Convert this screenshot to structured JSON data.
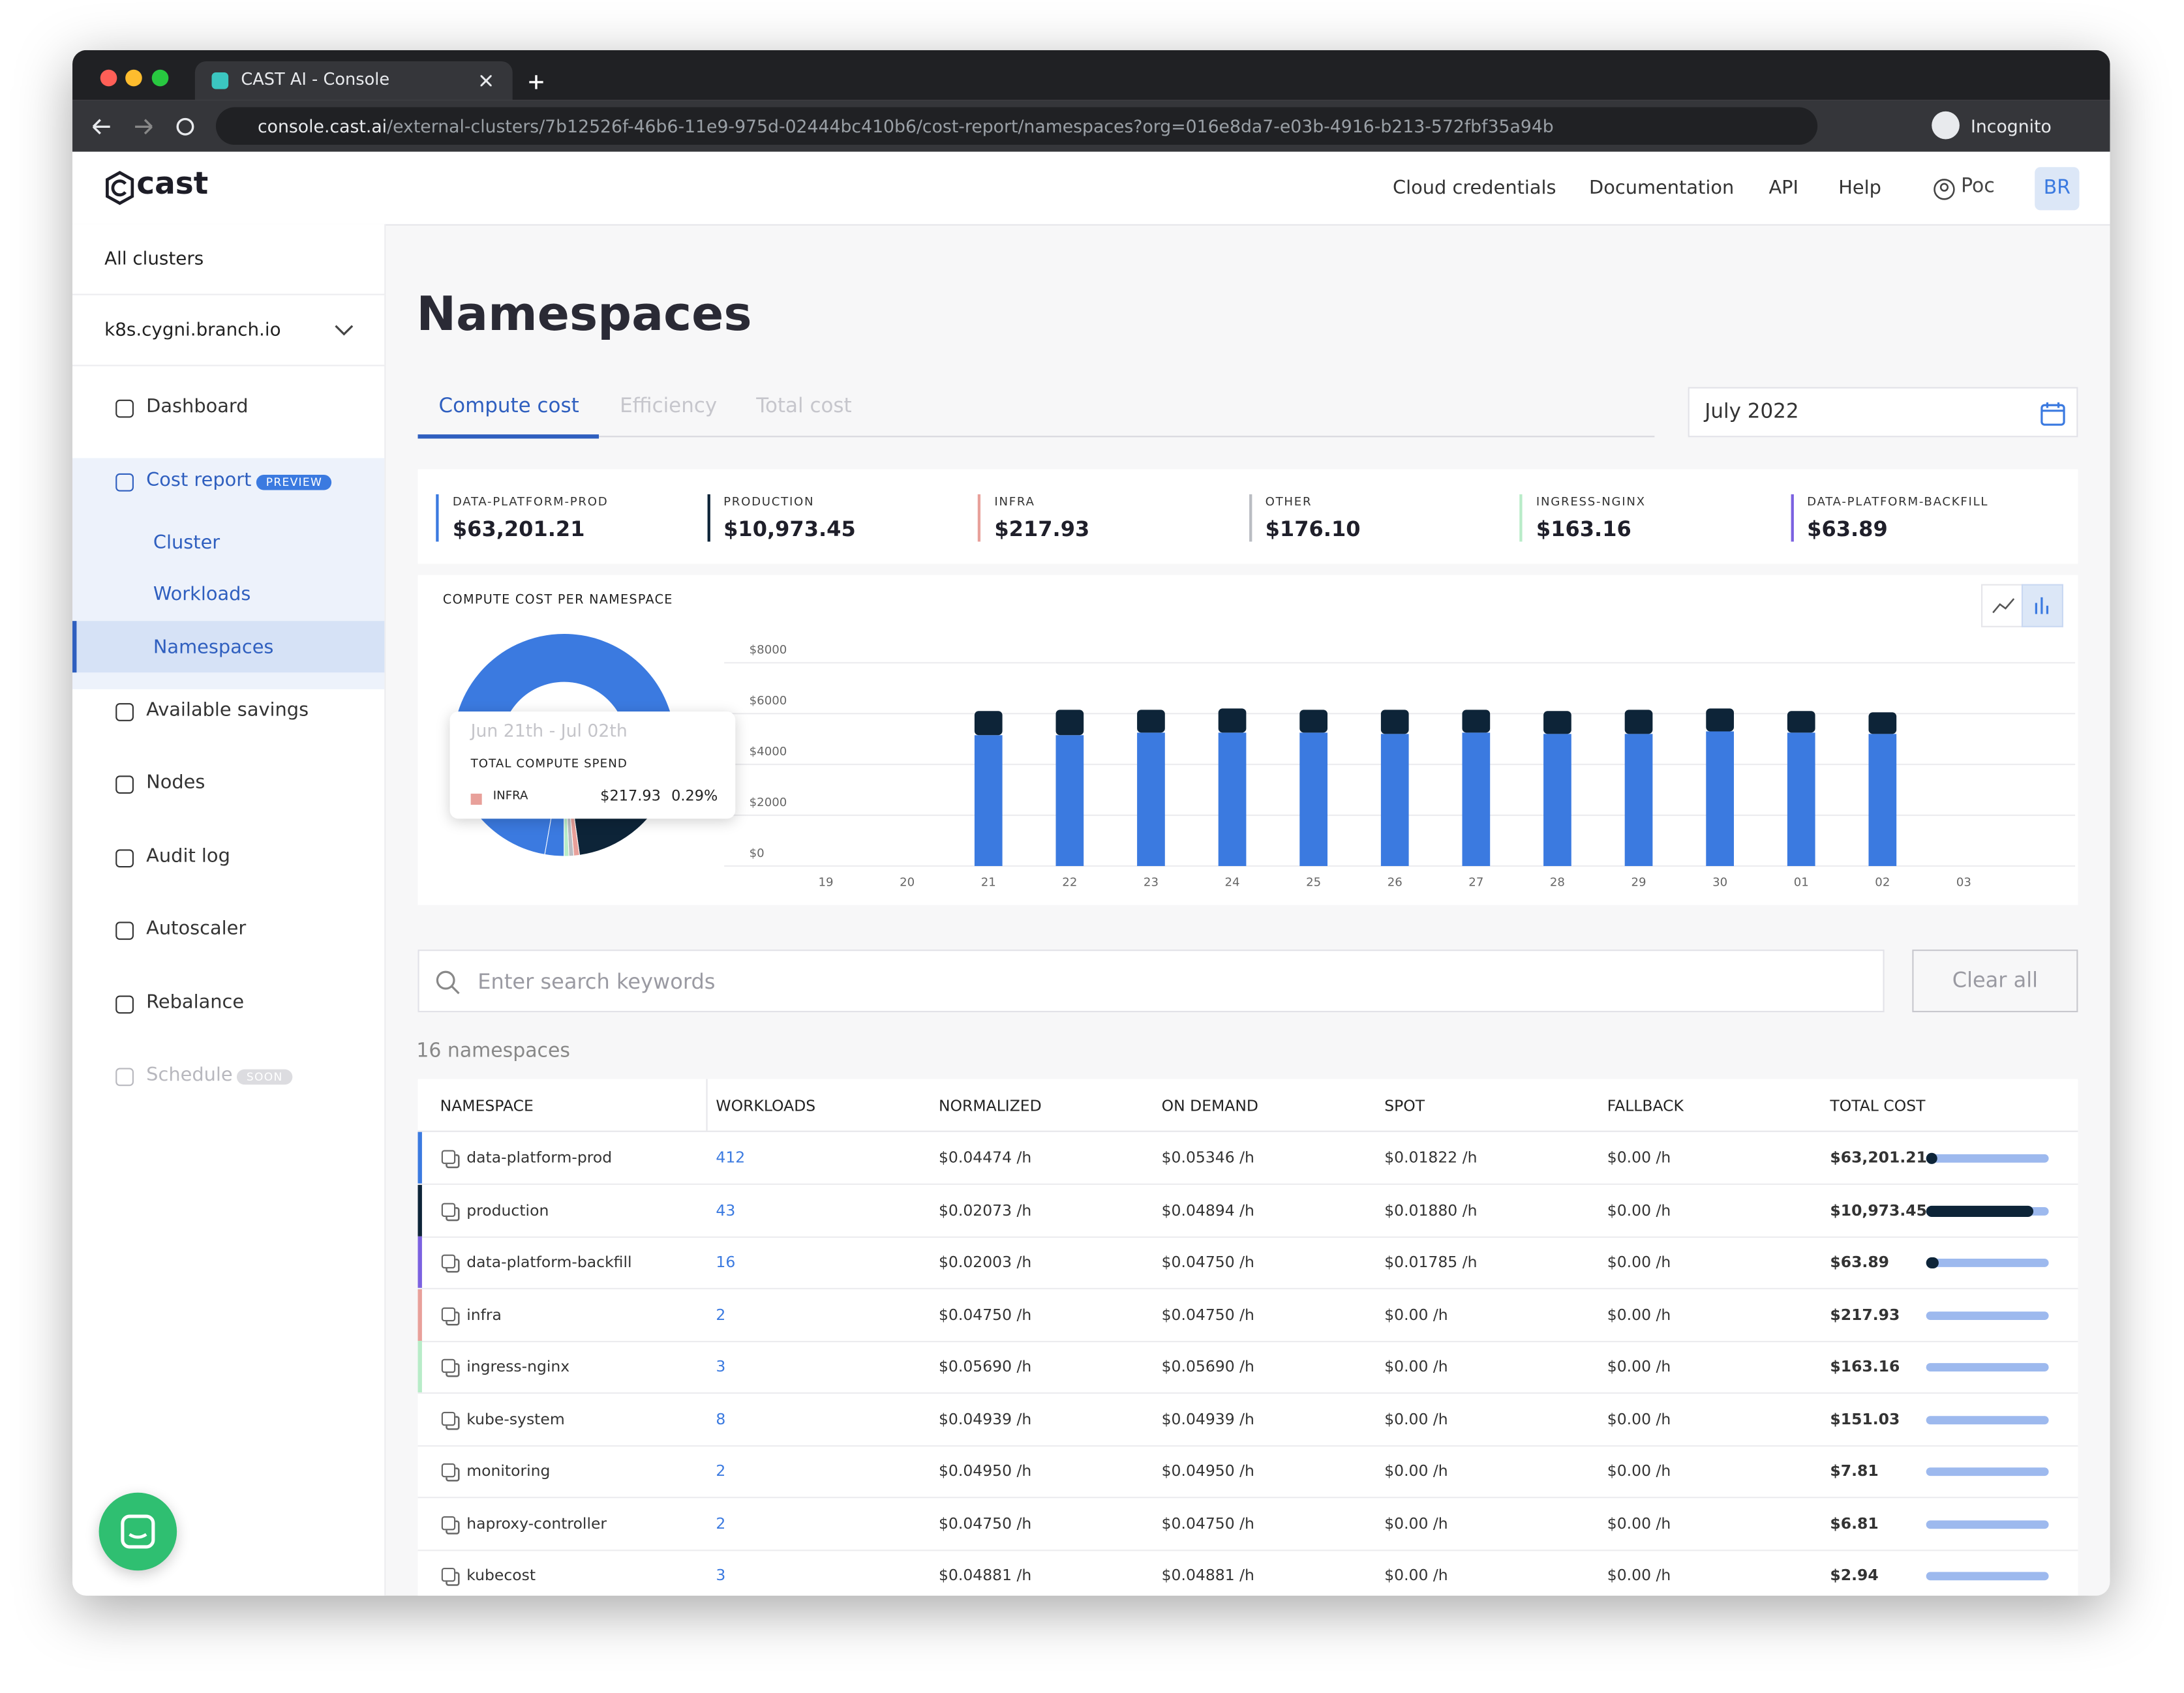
{
  "browser": {
    "tab_title": "CAST AI - Console",
    "url_host": "console.cast.ai",
    "url_path": "/external-clusters/7b12526f-46b6-11e9-975d-02444bc410b6/cost-report/namespaces?org=016e8da7-e03b-4916-b213-572fbf35a94b",
    "profile": "Incognito"
  },
  "header": {
    "logo": "cast",
    "nav": [
      "Cloud credentials",
      "Documentation",
      "API",
      "Help"
    ],
    "user": "Poc",
    "avatar": "BR"
  },
  "sidebar": {
    "all_clusters": "All clusters",
    "cluster": "k8s.cygni.branch.io",
    "items": [
      {
        "label": "Dashboard"
      },
      {
        "label": "Cost report",
        "badge": "PREVIEW",
        "children": [
          "Cluster",
          "Workloads",
          "Namespaces"
        ]
      },
      {
        "label": "Available savings"
      },
      {
        "label": "Nodes"
      },
      {
        "label": "Audit log"
      },
      {
        "label": "Autoscaler"
      },
      {
        "label": "Rebalance"
      },
      {
        "label": "Schedule",
        "badge": "SOON"
      }
    ]
  },
  "page": {
    "title": "Namespaces",
    "tabs": [
      "Compute cost",
      "Efficiency",
      "Total cost"
    ],
    "date": "July 2022"
  },
  "summary": [
    {
      "label": "DATA-PLATFORM-PROD",
      "value": "$63,201.21",
      "color": "#3b7ae0"
    },
    {
      "label": "PRODUCTION",
      "value": "$10,973.45",
      "color": "#0d2438"
    },
    {
      "label": "INFRA",
      "value": "$217.93",
      "color": "#e8a09a"
    },
    {
      "label": "OTHER",
      "value": "$176.10",
      "color": "#b9bcc2"
    },
    {
      "label": "INGRESS-NGINX",
      "value": "$163.16",
      "color": "#b8ecc8"
    },
    {
      "label": "DATA-PLATFORM-BACKFILL",
      "value": "$63.89",
      "color": "#7b61e0"
    }
  ],
  "chart_data": {
    "type": "bar",
    "stacked": true,
    "title": "COMPUTE COST PER NAMESPACE",
    "categories": [
      "19",
      "20",
      "21",
      "22",
      "23",
      "24",
      "25",
      "26",
      "27",
      "28",
      "29",
      "30",
      "01",
      "02",
      "03"
    ],
    "series": [
      {
        "color": "#3b7ae0",
        "values": [
          null,
          null,
          5150,
          5150,
          5250,
          5250,
          5250,
          5200,
          5250,
          5200,
          5200,
          5300,
          5250,
          5200,
          null
        ]
      },
      {
        "color": "#0d2438",
        "values": [
          null,
          null,
          950,
          1000,
          900,
          950,
          900,
          950,
          900,
          900,
          950,
          900,
          850,
          850,
          null
        ]
      }
    ],
    "ylim": [
      0,
      8000
    ],
    "yticks": [
      {
        "value": 0,
        "label": "$0"
      },
      {
        "value": 2000,
        "label": "$2000"
      },
      {
        "value": 4000,
        "label": "$4000"
      },
      {
        "value": 6000,
        "label": "$6000"
      },
      {
        "value": 8000,
        "label": "$8000"
      }
    ],
    "grid": true
  },
  "tooltip": {
    "range": "Jun 21th - Jul 02th",
    "heading": "TOTAL COMPUTE SPEND",
    "label": "INFRA",
    "value": "$217.93",
    "share": "0.29%",
    "color": "#e8a09a"
  },
  "search": {
    "placeholder": "Enter search keywords",
    "clear": "Clear all"
  },
  "table": {
    "count": "16 namespaces",
    "columns": [
      "NAMESPACE",
      "WORKLOADS",
      "NORMALIZED",
      "ON DEMAND",
      "SPOT",
      "FALLBACK",
      "TOTAL COST"
    ],
    "rows": [
      {
        "color": "#3b7ae0",
        "spot_share": 0.08,
        "cells": [
          "data-platform-prod",
          "412",
          "$0.04474 /h",
          "$0.05346 /h",
          "$0.01822 /h",
          "$0.00 /h",
          "$63,201.21"
        ]
      },
      {
        "color": "#0d2438",
        "spot_share": 0.87,
        "cells": [
          "production",
          "43",
          "$0.02073 /h",
          "$0.04894 /h",
          "$0.01880 /h",
          "$0.00 /h",
          "$10,973.45"
        ]
      },
      {
        "color": "#7b61e0",
        "spot_share": 0.1,
        "cells": [
          "data-platform-backfill",
          "16",
          "$0.02003 /h",
          "$0.04750 /h",
          "$0.01785 /h",
          "$0.00 /h",
          "$63.89"
        ]
      },
      {
        "color": "#e8a09a",
        "spot_share": 0,
        "cells": [
          "infra",
          "2",
          "$0.04750 /h",
          "$0.04750 /h",
          "$0.00 /h",
          "$0.00 /h",
          "$217.93"
        ]
      },
      {
        "color": "#b8ecc8",
        "spot_share": 0,
        "cells": [
          "ingress-nginx",
          "3",
          "$0.05690 /h",
          "$0.05690 /h",
          "$0.00 /h",
          "$0.00 /h",
          "$163.16"
        ]
      },
      {
        "spot_share": 0,
        "cells": [
          "kube-system",
          "8",
          "$0.04939 /h",
          "$0.04939 /h",
          "$0.00 /h",
          "$0.00 /h",
          "$151.03"
        ]
      },
      {
        "spot_share": 0,
        "cells": [
          "monitoring",
          "2",
          "$0.04950 /h",
          "$0.04950 /h",
          "$0.00 /h",
          "$0.00 /h",
          "$7.81"
        ]
      },
      {
        "spot_share": 0,
        "cells": [
          "haproxy-controller",
          "2",
          "$0.04750 /h",
          "$0.04750 /h",
          "$0.00 /h",
          "$0.00 /h",
          "$6.81"
        ]
      },
      {
        "spot_share": 0,
        "cells": [
          "kubecost",
          "3",
          "$0.04881 /h",
          "$0.04881 /h",
          "$0.00 /h",
          "$0.00 /h",
          "$2.94"
        ]
      }
    ]
  }
}
